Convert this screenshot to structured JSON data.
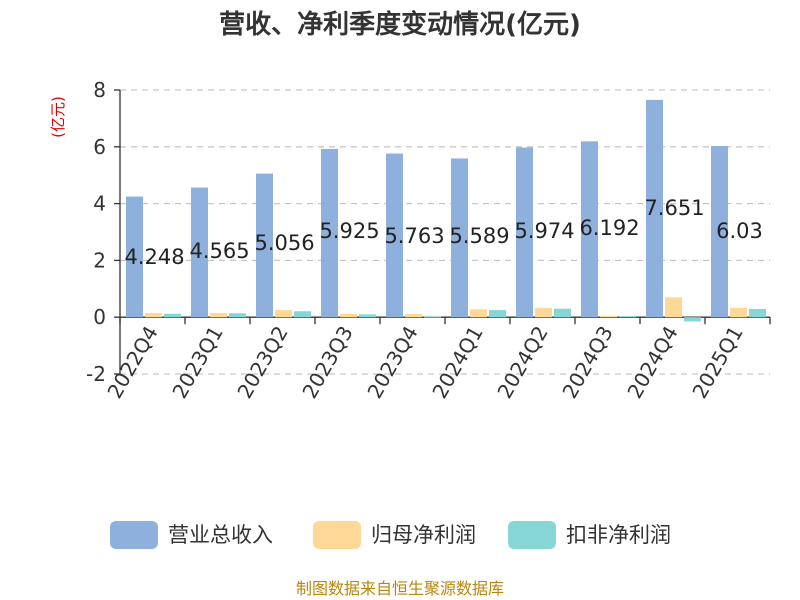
{
  "chart_data": {
    "type": "bar",
    "title": "营收、净利季度变动情况(亿元)",
    "unit_label": "(亿元)",
    "categories": [
      "2022Q4",
      "2023Q1",
      "2023Q2",
      "2023Q3",
      "2023Q4",
      "2024Q1",
      "2024Q2",
      "2024Q3",
      "2024Q4",
      "2025Q1"
    ],
    "series": [
      {
        "name": "营业总收入",
        "color": "#8eb0dd",
        "values": [
          4.248,
          4.565,
          5.056,
          5.925,
          5.763,
          5.589,
          5.974,
          6.192,
          7.651,
          6.03
        ]
      },
      {
        "name": "归母净利润",
        "color": "#fdd897",
        "values": [
          0.15,
          0.15,
          0.25,
          0.12,
          0.11,
          0.28,
          0.33,
          0.05,
          0.7,
          0.33
        ]
      },
      {
        "name": "扣非净利润",
        "color": "#86d6d6",
        "values": [
          0.12,
          0.14,
          0.21,
          0.1,
          0.02,
          0.25,
          0.3,
          0.04,
          -0.15,
          0.29
        ]
      }
    ],
    "data_labels": [
      "4.248",
      "4.565",
      "5.056",
      "5.925",
      "5.763",
      "5.589",
      "5.974",
      "6.192",
      "7.651",
      "6.03"
    ],
    "ylim": [
      -2,
      8
    ],
    "yticks": [
      -2,
      0,
      2,
      4,
      6,
      8
    ],
    "grid": true,
    "legend_position": "bottom",
    "source": "制图数据来自恒生聚源数据库"
  }
}
